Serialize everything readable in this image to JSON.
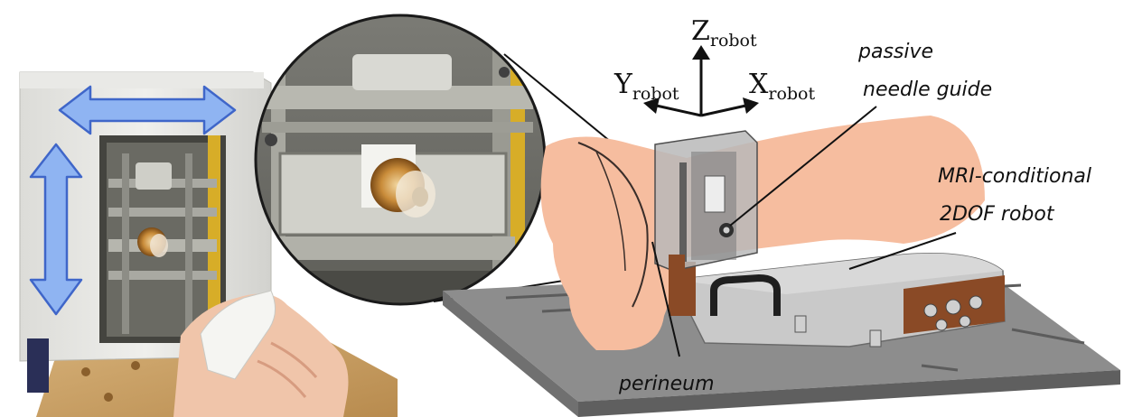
{
  "axes": {
    "z": {
      "symbol": "Z",
      "subscript": "robot"
    },
    "y": {
      "symbol": "Y",
      "subscript": "robot"
    },
    "x": {
      "symbol": "X",
      "subscript": "robot"
    }
  },
  "labels": {
    "needle_guide_line1": "passive",
    "needle_guide_line2": "needle guide",
    "robot_line1": "MRI-conditional",
    "robot_line2": "2DOF robot",
    "perineum": "perineum"
  },
  "colors": {
    "arrow_fill": "#8fb4f2",
    "arrow_stroke": "#3f66c9",
    "skin": "#f6bd9f",
    "rail": "#8a8a8a",
    "robot_body": "#c9c9c9",
    "copper": "#8a4a26"
  }
}
